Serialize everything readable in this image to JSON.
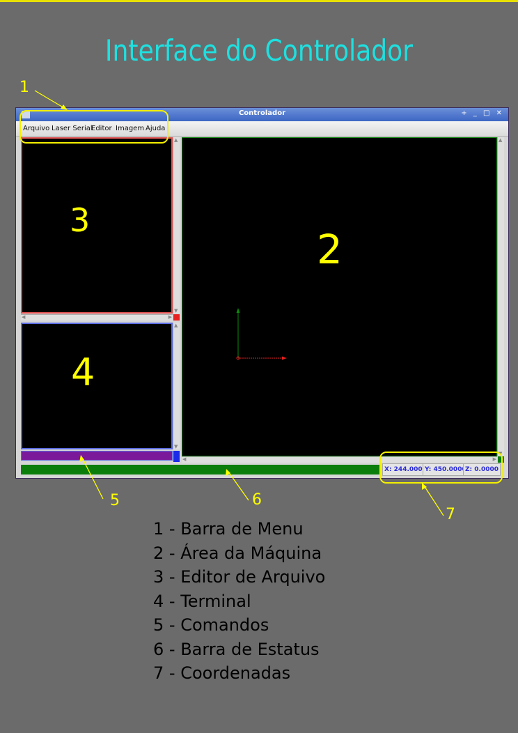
{
  "page_title": "Interface do Controlador",
  "window": {
    "title": "Controlador",
    "controls": "+ _ □ ✕",
    "menu": [
      "Arquivo",
      "Laser Serial",
      "Editor",
      "Imagem",
      "Ajuda"
    ]
  },
  "panels": {
    "editor_number": "3",
    "terminal_number": "4",
    "machine_number": "2"
  },
  "coordinates": {
    "x": "X: 244.0000",
    "y": "Y: 450.0000",
    "z": "Z: 0.0000"
  },
  "callouts": [
    "1",
    "5",
    "6",
    "7"
  ],
  "legend": [
    "1 - Barra de Menu",
    "2 - Área da Máquina",
    "3 - Editor de Arquivo",
    "4 - Terminal",
    "5 - Comandos",
    "6 - Barra de Estatus",
    "7 - Coordenadas"
  ],
  "colors": {
    "title": "#1ee0e0",
    "annotation": "#ffff00",
    "status_bar": "#0b7d0b",
    "editor_border": "#e05050",
    "terminal_border": "#5a6ae0",
    "command_bar": "#7a1a9a"
  }
}
